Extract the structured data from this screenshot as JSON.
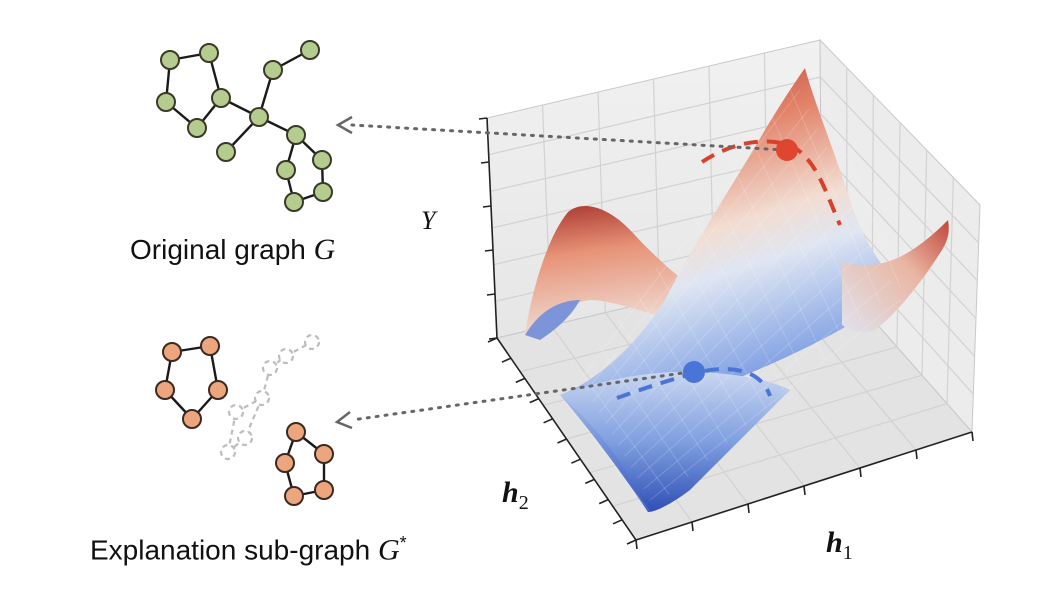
{
  "captions": {
    "original_text": "Original graph ",
    "original_symbol": "G",
    "explanation_text": "Explanation sub-graph ",
    "explanation_symbol": "G",
    "explanation_sup": "*"
  },
  "axes": {
    "y_label": "Y",
    "h1_base": "h",
    "h1_sub": "1",
    "h2_base": "h",
    "h2_sub": "2"
  },
  "colors": {
    "node_green_fill": "#b5cc8f",
    "node_green_stroke": "#3a3a2a",
    "node_orange_fill": "#eda57e",
    "node_orange_stroke": "#3a2a22",
    "ghost_edge": "#bdbdbd",
    "pointer_dotted": "#666666",
    "red_point": "#e0452f",
    "blue_point": "#4a74d6",
    "surface_red": "#c0392b",
    "surface_blue": "#3a63c8",
    "surface_mid": "#ece6e2"
  }
}
